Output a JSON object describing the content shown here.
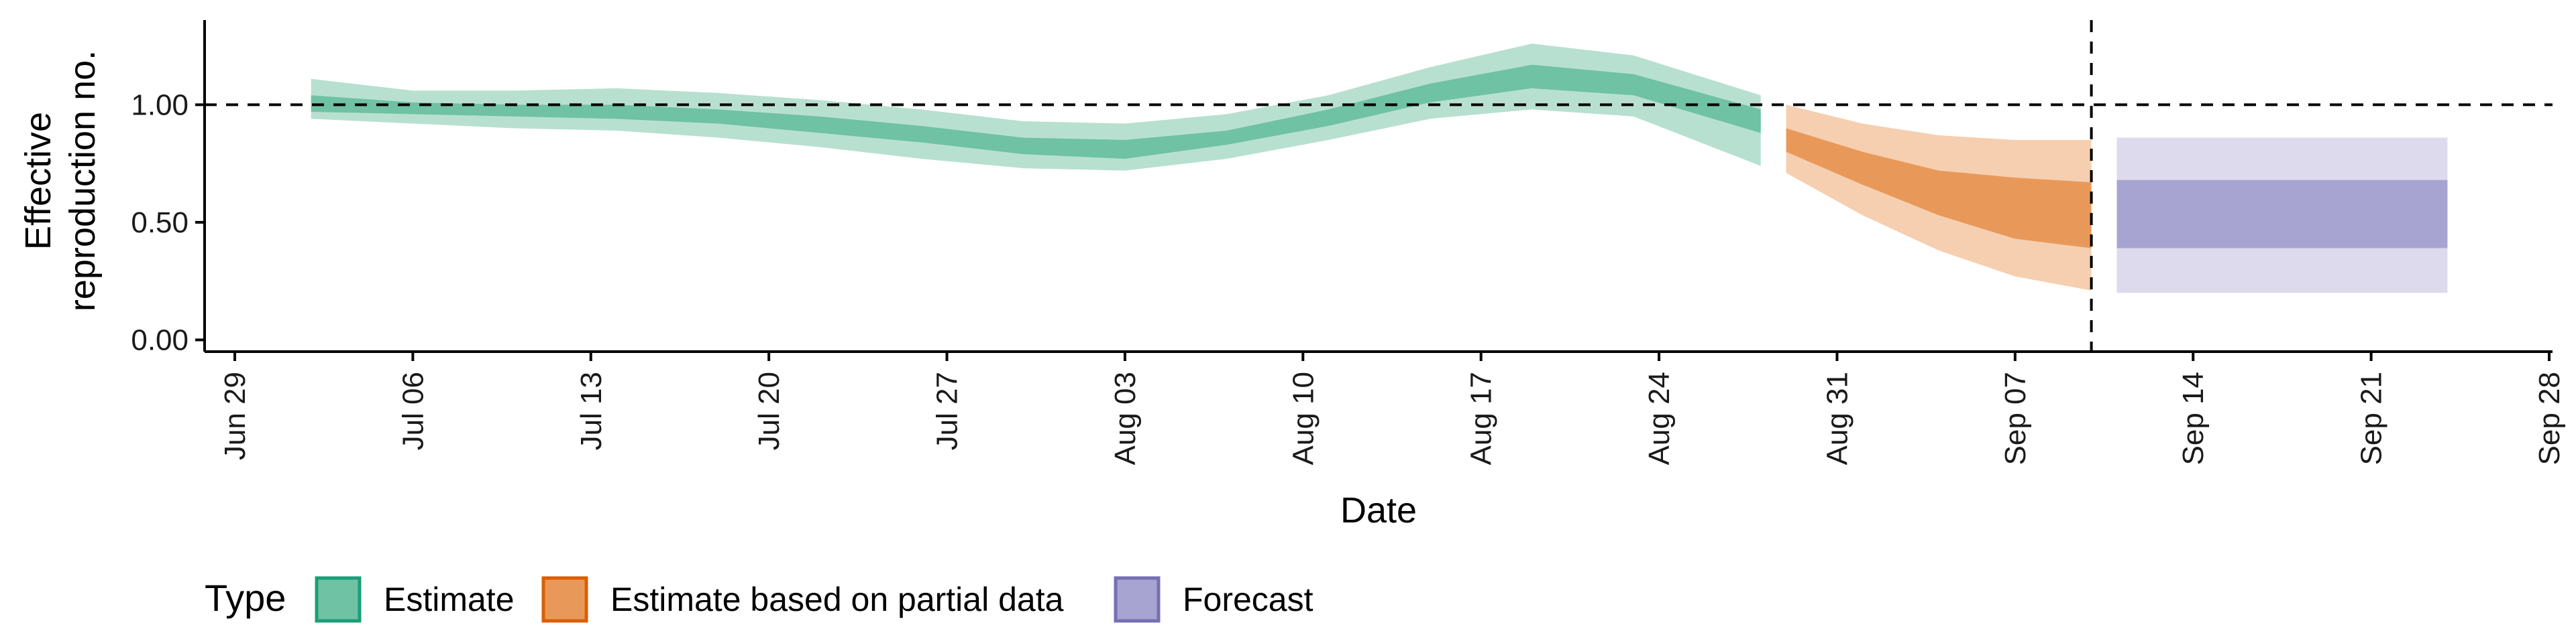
{
  "chart_data": {
    "type": "area",
    "xlabel": "Date",
    "ylabel_lines": [
      "Effective",
      "reproduction no."
    ],
    "x_ticks": [
      {
        "date": "2020-06-29",
        "label": "Jun 29"
      },
      {
        "date": "2020-07-06",
        "label": "Jul 06"
      },
      {
        "date": "2020-07-13",
        "label": "Jul 13"
      },
      {
        "date": "2020-07-20",
        "label": "Jul 20"
      },
      {
        "date": "2020-07-27",
        "label": "Jul 27"
      },
      {
        "date": "2020-08-03",
        "label": "Aug 03"
      },
      {
        "date": "2020-08-10",
        "label": "Aug 10"
      },
      {
        "date": "2020-08-17",
        "label": "Aug 17"
      },
      {
        "date": "2020-08-24",
        "label": "Aug 24"
      },
      {
        "date": "2020-08-31",
        "label": "Aug 31"
      },
      {
        "date": "2020-09-07",
        "label": "Sep 07"
      },
      {
        "date": "2020-09-14",
        "label": "Sep 14"
      },
      {
        "date": "2020-09-21",
        "label": "Sep 21"
      },
      {
        "date": "2020-09-28",
        "label": "Sep 28"
      }
    ],
    "xlim": [
      "2020-06-29",
      "2020-09-28"
    ],
    "y_ticks": [
      {
        "value": 0,
        "label": "0.00"
      },
      {
        "value": 0.5,
        "label": "0.50"
      },
      {
        "value": 1,
        "label": "1.00"
      }
    ],
    "ylim": [
      -0.05,
      1.36
    ],
    "reference_hline": 1.0,
    "reference_vline": "2020-09-10",
    "grid": false,
    "legend": {
      "position": "bottom-left",
      "title": "Type",
      "entries": [
        {
          "label": "Estimate",
          "fill": "#6FC2A3",
          "border": "#1B9E77"
        },
        {
          "label": "Estimate based on partial data",
          "fill": "#E8995A",
          "border": "#D95F02"
        },
        {
          "label": "Forecast",
          "fill": "#A8A4D1",
          "border": "#7570B3"
        }
      ]
    },
    "series": [
      {
        "name": "Estimate",
        "color": "#1B9E77",
        "inner_color": "#6FC2A3",
        "outer_color": "#B8E0D1",
        "points": [
          {
            "x": "2020-07-02",
            "lo90": 0.94,
            "lo50": 0.97,
            "hi50": 1.04,
            "hi90": 1.11
          },
          {
            "x": "2020-07-06",
            "lo90": 0.92,
            "lo50": 0.96,
            "hi50": 1.01,
            "hi90": 1.06
          },
          {
            "x": "2020-07-10",
            "lo90": 0.9,
            "lo50": 0.95,
            "hi50": 1.0,
            "hi90": 1.06
          },
          {
            "x": "2020-07-14",
            "lo90": 0.89,
            "lo50": 0.94,
            "hi50": 1.0,
            "hi90": 1.07
          },
          {
            "x": "2020-07-18",
            "lo90": 0.86,
            "lo50": 0.92,
            "hi50": 0.98,
            "hi90": 1.05
          },
          {
            "x": "2020-07-22",
            "lo90": 0.82,
            "lo50": 0.88,
            "hi50": 0.95,
            "hi90": 1.02
          },
          {
            "x": "2020-07-26",
            "lo90": 0.77,
            "lo50": 0.84,
            "hi50": 0.91,
            "hi90": 0.98
          },
          {
            "x": "2020-07-30",
            "lo90": 0.73,
            "lo50": 0.79,
            "hi50": 0.86,
            "hi90": 0.93
          },
          {
            "x": "2020-08-03",
            "lo90": 0.72,
            "lo50": 0.77,
            "hi50": 0.85,
            "hi90": 0.92
          },
          {
            "x": "2020-08-07",
            "lo90": 0.77,
            "lo50": 0.83,
            "hi50": 0.89,
            "hi90": 0.96
          },
          {
            "x": "2020-08-11",
            "lo90": 0.85,
            "lo50": 0.91,
            "hi50": 0.98,
            "hi90": 1.04
          },
          {
            "x": "2020-08-15",
            "lo90": 0.94,
            "lo50": 1.01,
            "hi50": 1.09,
            "hi90": 1.16
          },
          {
            "x": "2020-08-19",
            "lo90": 0.98,
            "lo50": 1.07,
            "hi50": 1.17,
            "hi90": 1.26
          },
          {
            "x": "2020-08-23",
            "lo90": 0.95,
            "lo50": 1.04,
            "hi50": 1.13,
            "hi90": 1.21
          },
          {
            "x": "2020-08-28",
            "lo90": 0.74,
            "lo50": 0.88,
            "hi50": 0.98,
            "hi90": 1.04
          }
        ]
      },
      {
        "name": "Estimate based on partial data",
        "color": "#D95F02",
        "inner_color": "#E8995A",
        "outer_color": "#F5CFB0",
        "points": [
          {
            "x": "2020-08-29",
            "lo90": 0.71,
            "lo50": 0.8,
            "hi50": 0.9,
            "hi90": 1.0
          },
          {
            "x": "2020-09-01",
            "lo90": 0.53,
            "lo50": 0.66,
            "hi50": 0.8,
            "hi90": 0.92
          },
          {
            "x": "2020-09-04",
            "lo90": 0.38,
            "lo50": 0.53,
            "hi50": 0.72,
            "hi90": 0.87
          },
          {
            "x": "2020-09-07",
            "lo90": 0.27,
            "lo50": 0.43,
            "hi50": 0.69,
            "hi90": 0.85
          },
          {
            "x": "2020-09-10",
            "lo90": 0.21,
            "lo50": 0.39,
            "hi50": 0.67,
            "hi90": 0.85
          }
        ]
      },
      {
        "name": "Forecast",
        "color": "#7570B3",
        "inner_color": "#A8A4D1",
        "outer_color": "#DCDAEC",
        "points": [
          {
            "x": "2020-09-11",
            "lo90": 0.2,
            "lo50": 0.39,
            "hi50": 0.68,
            "hi90": 0.86
          },
          {
            "x": "2020-09-24",
            "lo90": 0.2,
            "lo50": 0.39,
            "hi50": 0.68,
            "hi90": 0.86
          }
        ]
      }
    ]
  }
}
